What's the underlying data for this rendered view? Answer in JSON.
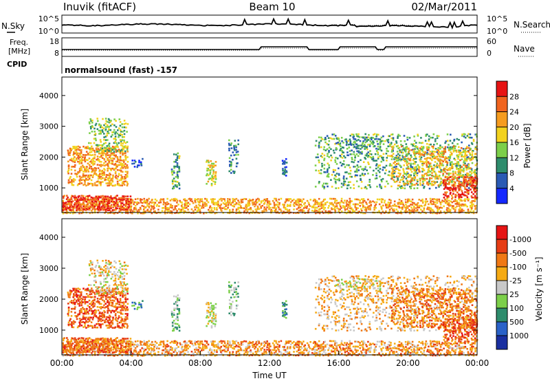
{
  "header": {
    "station": "Inuvik (fitACF)",
    "beam": "Beam 10",
    "date": "02/Mar/2011"
  },
  "noise_panel": {
    "left_label": "N.Sky",
    "right_label": "N.Search",
    "left_ticks": [
      "10^5",
      "10^0"
    ],
    "right_ticks": [
      "10^5",
      "10^0"
    ]
  },
  "freq_panel": {
    "left_label_1": "Freq.",
    "left_label_2": "[MHz]",
    "right_label": "Nave",
    "left_ticks": [
      "18",
      "8"
    ],
    "right_ticks": [
      "60",
      "0"
    ]
  },
  "cpid": {
    "label": "CPID",
    "value": "normalsound (fast) -157"
  },
  "chart_data": [
    {
      "type": "heatmap",
      "name": "power",
      "ylabel": "Slant Range [km]",
      "xlabel": "",
      "y_ticks": [
        "1000",
        "2000",
        "3000",
        "4000"
      ],
      "ylim": [
        200,
        4600
      ],
      "colorbar": {
        "title": "Power [dB]",
        "labels": [
          "4",
          "8",
          "12",
          "16",
          "20",
          "24",
          "28"
        ],
        "colors": [
          "#1428ff",
          "#2a5ab4",
          "#2e8c6c",
          "#7ccf4a",
          "#f2d21e",
          "#f59b1e",
          "#f0641e",
          "#e61414"
        ]
      }
    },
    {
      "type": "heatmap",
      "name": "velocity",
      "ylabel": "Slant Range [km]",
      "xlabel": "Time UT",
      "y_ticks": [
        "1000",
        "2000",
        "3000",
        "4000"
      ],
      "ylim": [
        200,
        4600
      ],
      "x_ticks": [
        "00:00",
        "04:00",
        "08:00",
        "12:00",
        "16:00",
        "20:00",
        "00:00"
      ],
      "xlim": [
        "00:00",
        "24:00"
      ],
      "colorbar": {
        "title": "Velocity [m s⁻¹]",
        "labels": [
          "1000",
          "500",
          "100",
          "25",
          "-25",
          "-100",
          "-500",
          "-1000"
        ],
        "colors": [
          "#1a2fa0",
          "#2a62c8",
          "#2e8c6c",
          "#7ccf4a",
          "#c8c8c8",
          "#f5aa14",
          "#f07814",
          "#e63c14",
          "#e61414"
        ]
      }
    }
  ]
}
